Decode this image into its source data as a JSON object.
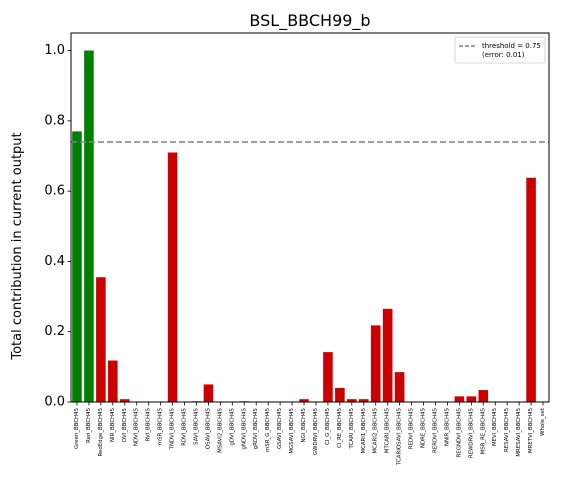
{
  "chart_data": {
    "type": "bar",
    "title": "BSL_BBCH99_b",
    "xlabel": "",
    "ylabel": "Total contribution in current output",
    "ylim": [
      0,
      1.05
    ],
    "yticks": [
      "0.0",
      "0.2",
      "0.4",
      "0.6",
      "0.8",
      "1.0"
    ],
    "ytick_values": [
      0,
      0.2,
      0.4,
      0.6,
      0.8,
      1.0
    ],
    "grid": false,
    "legend_position": "top-right",
    "threshold": {
      "value": 0.74,
      "label_line1": "threshold = 0.75",
      "label_line2": "(error: 0.01)",
      "color": "#808080"
    },
    "colors": {
      "above": "#008000",
      "below": "#cc0000"
    },
    "categories": [
      "Green_BBCH45",
      "Red_BBCH45",
      "RedEdge_BBCH45",
      "NIR_BBCH45",
      "DVI_BBCH45",
      "NDVI_BBCH45",
      "RVI_BBCH45",
      "mSR_BBCH45",
      "TNDVI_BBCH45",
      "RDVI_BBCH45",
      "SAVI_BBCH45",
      "OSAVI_BBCH45",
      "MSAVI2_BBCH45",
      "gDVI_BBCH45",
      "gNDVI_BBCH45",
      "gRDVI_BBCH45",
      "mSR_G_BBCH45",
      "GSAVI_BBCH45",
      "MGSAVI_BBCH45",
      "NGI_BBCH45",
      "GWDRVI_BBCH45",
      "CI_G_BBCH45",
      "CI_RE_BBCH45",
      "TCARI_BBCH45",
      "MCARI1_BBCH45",
      "MCARI2_BBCH45",
      "MTCARI_BBCH45",
      "TCARIOSAVI_BBCH45",
      "REDVI_BBCH45",
      "NDRE_BBCH45",
      "RERDVI_BBCH45",
      "NNIR_BBCH45",
      "REGNDVI_BBCH45",
      "REWDRVI_BBCH45",
      "MSR_RE_BBCH45",
      "MEVI_BBCH45",
      "RESAVI_BBCH45",
      "MRESAVI_BBCH45",
      "MRETVI_BBCH45",
      "Whole_set"
    ],
    "values": [
      0.77,
      1.0,
      0.355,
      0.118,
      0.008,
      0.0,
      0.0,
      0.0,
      0.71,
      0.0,
      0.002,
      0.05,
      0.0,
      0.0,
      0.002,
      0.0,
      0.0,
      0.0,
      0.0,
      0.008,
      0.0,
      0.142,
      0.04,
      0.008,
      0.008,
      0.218,
      0.265,
      0.085,
      0.0,
      0.0,
      0.0,
      0.0,
      0.016,
      0.016,
      0.034,
      0.0,
      0.0,
      0.0,
      0.638,
      0.0
    ],
    "bar_colors": [
      "#008000",
      "#008000",
      "#cc0000",
      "#cc0000",
      "#cc0000",
      "#cc0000",
      "#cc0000",
      "#cc0000",
      "#cc0000",
      "#cc0000",
      "#cc0000",
      "#cc0000",
      "#cc0000",
      "#cc0000",
      "#cc0000",
      "#cc0000",
      "#cc0000",
      "#cc0000",
      "#cc0000",
      "#cc0000",
      "#cc0000",
      "#cc0000",
      "#cc0000",
      "#cc0000",
      "#cc0000",
      "#cc0000",
      "#cc0000",
      "#cc0000",
      "#cc0000",
      "#cc0000",
      "#cc0000",
      "#cc0000",
      "#cc0000",
      "#cc0000",
      "#cc0000",
      "#cc0000",
      "#cc0000",
      "#cc0000",
      "#cc0000",
      "#cc0000"
    ]
  }
}
